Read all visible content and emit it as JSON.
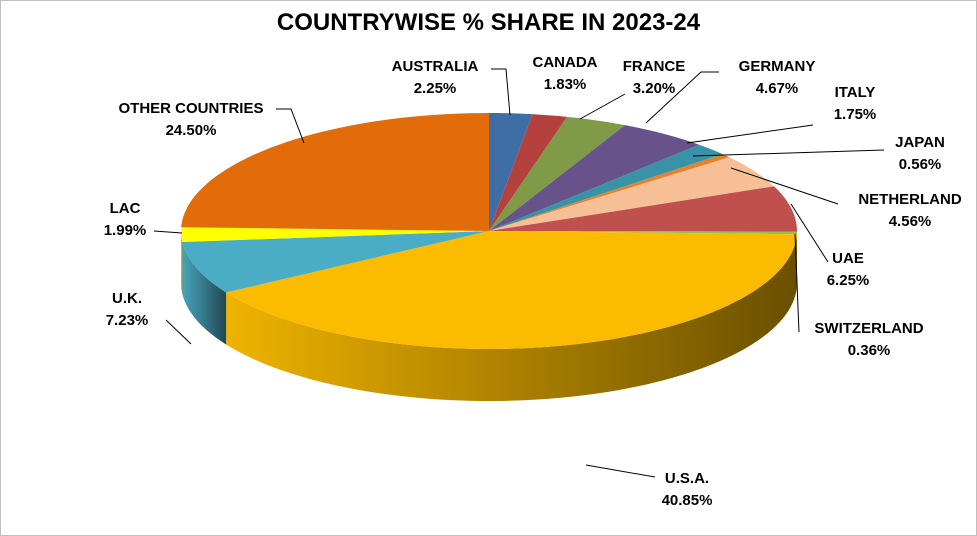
{
  "chart_data": {
    "type": "pie",
    "title": "COUNTRYWISE % SHARE IN 2023-24",
    "style": "3d",
    "slices": [
      {
        "label": "AUSTRALIA",
        "value": 2.25,
        "value_label": "2.25%",
        "color": "#3f6ea6"
      },
      {
        "label": "CANADA",
        "value": 1.83,
        "value_label": "1.83%",
        "color": "#b5413e"
      },
      {
        "label": "FRANCE",
        "value": 3.2,
        "value_label": "3.20%",
        "color": "#7f9b48"
      },
      {
        "label": "GERMANY",
        "value": 4.67,
        "value_label": "4.67%",
        "color": "#68528a"
      },
      {
        "label": "ITALY",
        "value": 1.75,
        "value_label": "1.75%",
        "color": "#3893a8"
      },
      {
        "label": "JAPAN",
        "value": 0.56,
        "value_label": "0.56%",
        "color": "#e5822e"
      },
      {
        "label": "NETHERLAND",
        "value": 4.56,
        "value_label": "4.56%",
        "color": "#f6bf95"
      },
      {
        "label": "UAE",
        "value": 6.25,
        "value_label": "6.25%",
        "color": "#c0504d"
      },
      {
        "label": "SWITZERLAND",
        "value": 0.36,
        "value_label": "0.36%",
        "color": "#9bbb59"
      },
      {
        "label": "U.S.A.",
        "value": 40.85,
        "value_label": "40.85%",
        "color": "#fbbc00"
      },
      {
        "label": "U.K.",
        "value": 7.23,
        "value_label": "7.23%",
        "color": "#4bacc6"
      },
      {
        "label": "LAC",
        "value": 1.99,
        "value_label": "1.99%",
        "color": "#ffff00"
      },
      {
        "label": "OTHER COUNTRIES",
        "value": 24.5,
        "value_label": "24.50%",
        "color": "#e26b0a"
      }
    ]
  }
}
